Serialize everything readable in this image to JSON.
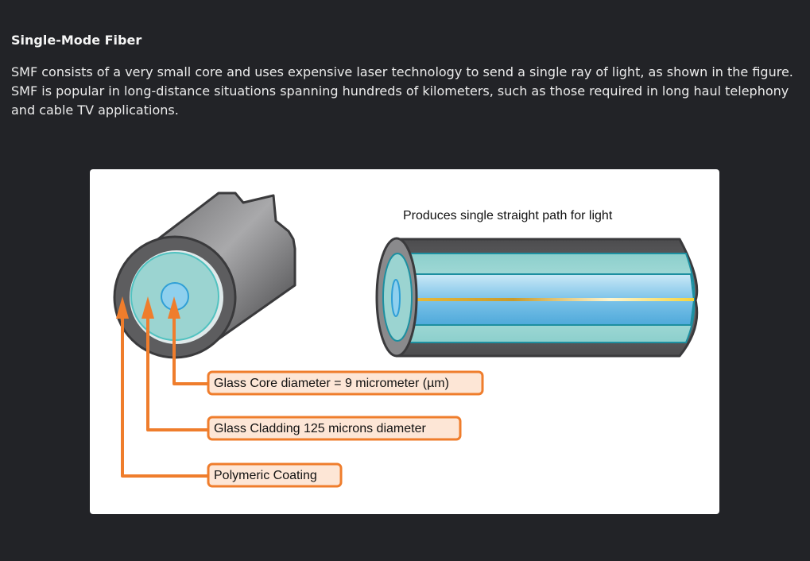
{
  "section": {
    "title": "Single-Mode Fiber",
    "body": "SMF consists of a very small core and uses expensive laser technology to send a single ray of light, as shown in the figure. SMF is popular in long-distance situations spanning hundreds of kilometers, such as those required in long haul telephony and cable TV applications."
  },
  "figure": {
    "caption": "Produces single straight path for light",
    "labels": {
      "core": "Glass Core diameter = 9 micrometer (µm)",
      "cladding": "Glass Cladding 125 microns diameter",
      "coating": "Polymeric Coating"
    },
    "colors": {
      "callout": "#ef7d2c",
      "callout_fill": "#fde6d6",
      "coating": "#5a5a5a",
      "cladding": "#9bd4d1",
      "core": "#8fd0ee",
      "light_ray": "#f2c93a"
    }
  }
}
